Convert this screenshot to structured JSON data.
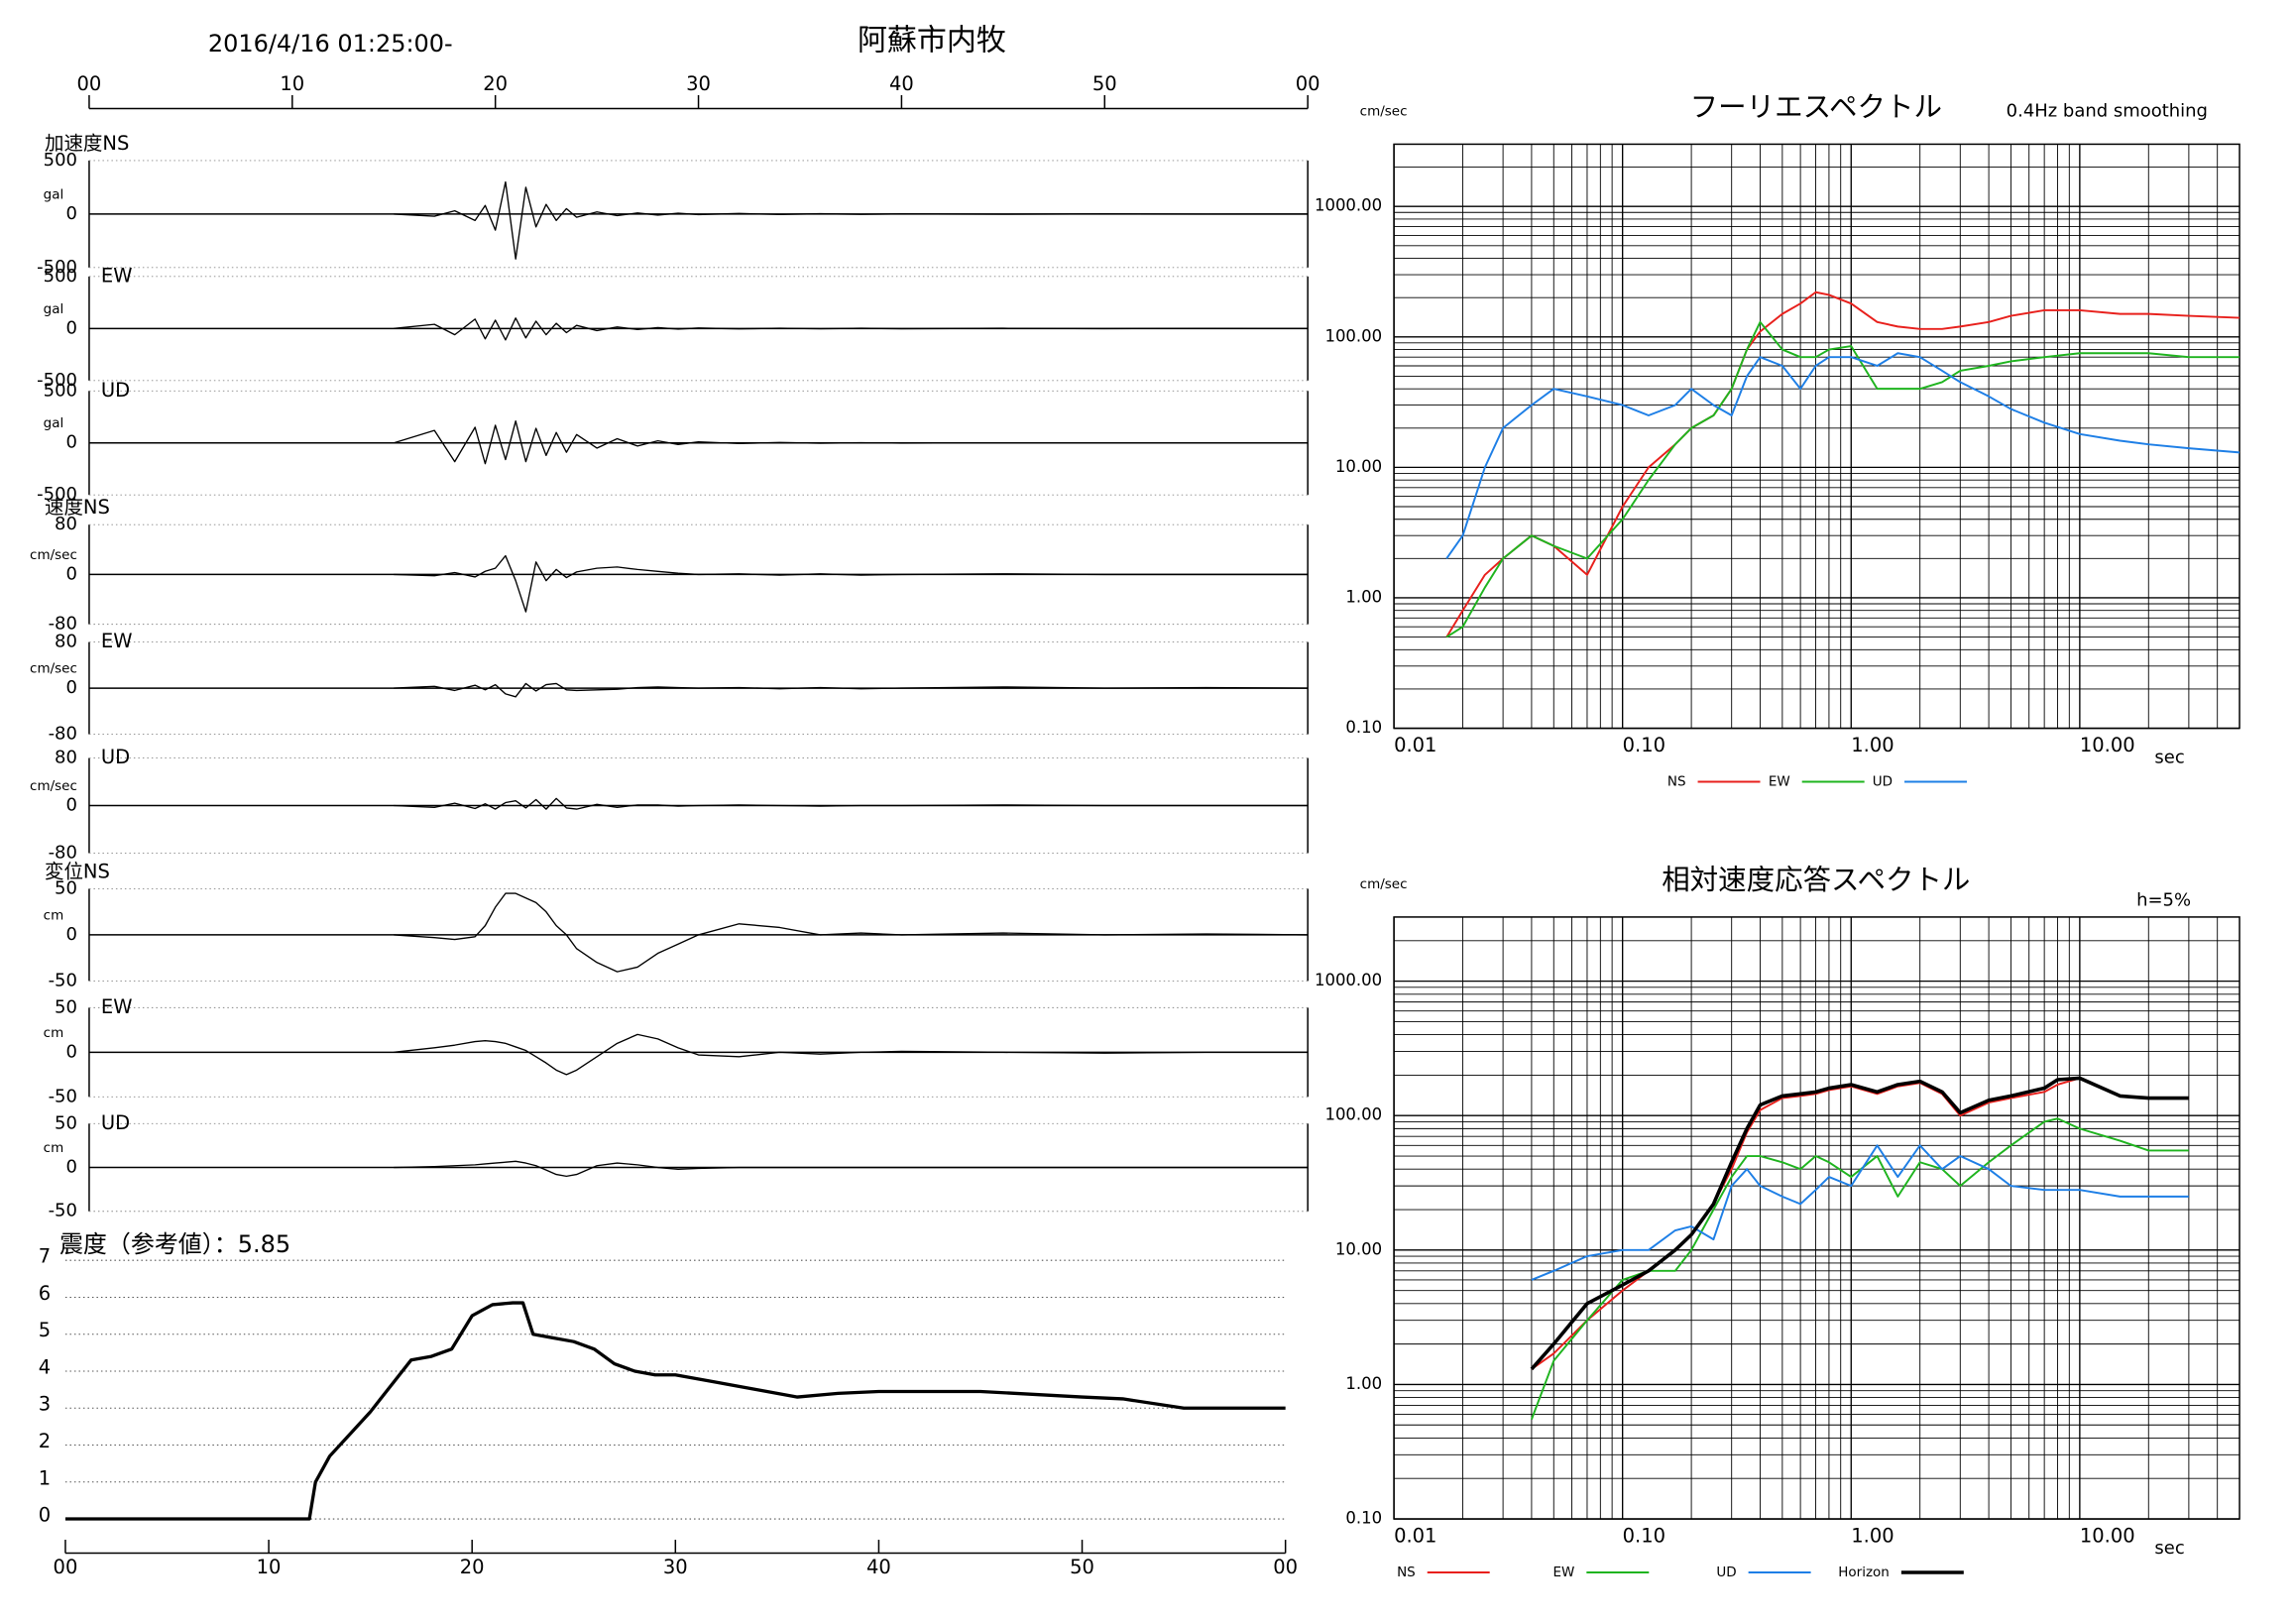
{
  "header": {
    "datetime": "2016/4/16 01:25:00-",
    "title": "阿蘇市内牧"
  },
  "chart_data": [
    {
      "type": "line",
      "label": "加速度NS",
      "unit": "gal",
      "color": "#000000",
      "xlim": [
        0,
        60
      ],
      "xticks": [
        {
          "value": 0,
          "label": "00"
        },
        10,
        20,
        30,
        40,
        50,
        {
          "value": 60,
          "label": "00"
        }
      ],
      "ylim": [
        -500,
        500
      ],
      "yticks": [
        -500,
        0,
        500
      ],
      "x": [
        15,
        17,
        18,
        19,
        19.5,
        20,
        20.5,
        21,
        21.5,
        22,
        22.5,
        23,
        23.5,
        24,
        25,
        26,
        27,
        28,
        29,
        30,
        32,
        34,
        36,
        38,
        40,
        45,
        50,
        55,
        60
      ],
      "values": [
        0,
        -20,
        30,
        -60,
        80,
        -150,
        300,
        -420,
        250,
        -120,
        90,
        -60,
        50,
        -30,
        20,
        -15,
        10,
        -10,
        8,
        -5,
        5,
        -4,
        3,
        -3,
        2,
        -2,
        2,
        -1,
        0
      ]
    },
    {
      "type": "line",
      "label": "EW",
      "unit": "gal",
      "color": "#000000",
      "xlim": [
        0,
        60
      ],
      "ylim": [
        -500,
        500
      ],
      "yticks": [
        -500,
        0,
        500
      ],
      "x": [
        15,
        17,
        18,
        19,
        19.5,
        20,
        20.5,
        21,
        21.5,
        22,
        22.5,
        23,
        23.5,
        24,
        25,
        26,
        27,
        28,
        29,
        30,
        32,
        34,
        36,
        38,
        40,
        45,
        50,
        55,
        60
      ],
      "values": [
        0,
        40,
        -60,
        90,
        -100,
        80,
        -110,
        100,
        -90,
        70,
        -60,
        50,
        -40,
        30,
        -20,
        15,
        -10,
        8,
        -6,
        5,
        -4,
        3,
        -3,
        2,
        -2,
        2,
        -1,
        1,
        0
      ]
    },
    {
      "type": "line",
      "label": "UD",
      "unit": "gal",
      "color": "#000000",
      "xlim": [
        0,
        60
      ],
      "ylim": [
        -500,
        500
      ],
      "yticks": [
        -500,
        0,
        500
      ],
      "x": [
        15,
        17,
        18,
        19,
        19.5,
        20,
        20.5,
        21,
        21.5,
        22,
        22.5,
        23,
        23.5,
        24,
        25,
        26,
        27,
        28,
        29,
        30,
        32,
        34,
        36,
        38,
        40,
        45,
        50,
        55,
        60
      ],
      "values": [
        0,
        120,
        -180,
        150,
        -200,
        170,
        -160,
        210,
        -180,
        140,
        -120,
        100,
        -90,
        80,
        -50,
        40,
        -30,
        20,
        -15,
        10,
        -6,
        4,
        -3,
        2,
        -2,
        1,
        -1,
        1,
        0
      ]
    },
    {
      "type": "line",
      "label": "速度NS",
      "unit": "cm/sec",
      "color": "#000000",
      "xlim": [
        0,
        60
      ],
      "ylim": [
        -80,
        80
      ],
      "yticks": [
        -80,
        0,
        80
      ],
      "x": [
        15,
        17,
        18,
        19,
        19.5,
        20,
        20.5,
        21,
        21.5,
        22,
        22.5,
        23,
        23.5,
        24,
        25,
        26,
        27,
        28,
        29,
        30,
        32,
        34,
        36,
        38,
        40,
        45,
        50,
        55,
        60
      ],
      "values": [
        0,
        -2,
        3,
        -4,
        5,
        10,
        30,
        -10,
        -60,
        20,
        -10,
        8,
        -5,
        4,
        10,
        12,
        8,
        5,
        2,
        0,
        1,
        -1,
        1,
        -1,
        0,
        1,
        0,
        0,
        0
      ]
    },
    {
      "type": "line",
      "label": "EW",
      "unit": "cm/sec",
      "color": "#000000",
      "xlim": [
        0,
        60
      ],
      "ylim": [
        -80,
        80
      ],
      "yticks": [
        -80,
        0,
        80
      ],
      "x": [
        15,
        17,
        18,
        19,
        19.5,
        20,
        20.5,
        21,
        21.5,
        22,
        22.5,
        23,
        23.5,
        24,
        25,
        26,
        27,
        28,
        29,
        30,
        32,
        34,
        36,
        38,
        40,
        45,
        50,
        55,
        60
      ],
      "values": [
        0,
        3,
        -4,
        5,
        -3,
        6,
        -10,
        -15,
        8,
        -5,
        6,
        8,
        -3,
        -4,
        -3,
        -2,
        1,
        2,
        1,
        0,
        1,
        -1,
        1,
        -1,
        0,
        2,
        0,
        1,
        0
      ]
    },
    {
      "type": "line",
      "label": "UD",
      "unit": "cm/sec",
      "color": "#000000",
      "xlim": [
        0,
        60
      ],
      "ylim": [
        -80,
        80
      ],
      "yticks": [
        -80,
        0,
        80
      ],
      "x": [
        15,
        17,
        18,
        19,
        19.5,
        20,
        20.5,
        21,
        21.5,
        22,
        22.5,
        23,
        23.5,
        24,
        25,
        26,
        27,
        28,
        29,
        30,
        32,
        34,
        36,
        38,
        40,
        45,
        50,
        55,
        60
      ],
      "values": [
        0,
        -3,
        4,
        -5,
        3,
        -6,
        5,
        8,
        -4,
        10,
        -6,
        12,
        -4,
        -6,
        2,
        -3,
        1,
        1,
        -1,
        0,
        1,
        0,
        -1,
        0,
        0,
        1,
        0,
        0,
        0
      ]
    },
    {
      "type": "line",
      "label": "変位NS",
      "unit": "cm",
      "color": "#000000",
      "xlim": [
        0,
        60
      ],
      "ylim": [
        -50,
        50
      ],
      "yticks": [
        -50,
        0,
        50
      ],
      "x": [
        15,
        17,
        18,
        19,
        19.5,
        20,
        20.5,
        21,
        21.5,
        22,
        22.5,
        23,
        23.5,
        24,
        25,
        26,
        27,
        28,
        29,
        30,
        32,
        34,
        36,
        38,
        40,
        45,
        50,
        55,
        60
      ],
      "values": [
        0,
        -3,
        -5,
        -2,
        10,
        30,
        45,
        45,
        40,
        35,
        25,
        10,
        0,
        -15,
        -30,
        -40,
        -35,
        -20,
        -10,
        0,
        12,
        8,
        0,
        2,
        0,
        2,
        0,
        1,
        0
      ]
    },
    {
      "type": "line",
      "label": "EW",
      "unit": "cm",
      "color": "#000000",
      "xlim": [
        0,
        60
      ],
      "ylim": [
        -50,
        50
      ],
      "yticks": [
        -50,
        0,
        50
      ],
      "x": [
        15,
        17,
        18,
        19,
        19.5,
        20,
        20.5,
        21,
        21.5,
        22,
        22.5,
        23,
        23.5,
        24,
        25,
        26,
        27,
        28,
        29,
        30,
        32,
        34,
        36,
        38,
        40,
        45,
        50,
        55,
        60
      ],
      "values": [
        0,
        5,
        8,
        12,
        13,
        12,
        10,
        6,
        2,
        -5,
        -12,
        -20,
        -25,
        -20,
        -5,
        10,
        20,
        15,
        5,
        -3,
        -5,
        0,
        -2,
        0,
        1,
        0,
        -1,
        0,
        0
      ]
    },
    {
      "type": "line",
      "label": "UD",
      "unit": "cm",
      "color": "#000000",
      "xlim": [
        0,
        60
      ],
      "ylim": [
        -50,
        50
      ],
      "yticks": [
        -50,
        0,
        50
      ],
      "x": [
        15,
        17,
        18,
        19,
        19.5,
        20,
        20.5,
        21,
        21.5,
        22,
        22.5,
        23,
        23.5,
        24,
        25,
        26,
        27,
        28,
        29,
        30,
        32,
        34,
        36,
        38,
        40,
        45,
        50,
        55,
        60
      ],
      "values": [
        0,
        1,
        2,
        3,
        4,
        5,
        6,
        7,
        5,
        2,
        -3,
        -8,
        -10,
        -8,
        2,
        5,
        3,
        0,
        -2,
        -1,
        0,
        0,
        0,
        0,
        0,
        0,
        0,
        0,
        0
      ]
    },
    {
      "type": "line",
      "title": "震度（参考値）：5.85",
      "color": "#000000",
      "grid": true,
      "xlim": [
        0,
        60
      ],
      "xticks": [
        {
          "value": 0,
          "label": "00"
        },
        10,
        20,
        30,
        40,
        50,
        {
          "value": 60,
          "label": "00"
        }
      ],
      "ylim": [
        0,
        7
      ],
      "yticks": [
        0,
        1,
        2,
        3,
        4,
        5,
        6,
        7
      ],
      "x": [
        0,
        12,
        12.3,
        13,
        14,
        15,
        16,
        17,
        18,
        19,
        20,
        21,
        22,
        22.5,
        23,
        24,
        25,
        26,
        27,
        28,
        29,
        30,
        32,
        34,
        36,
        38,
        40,
        45,
        50,
        52,
        55,
        60
      ],
      "values": [
        0,
        0,
        1,
        1.7,
        2.3,
        2.9,
        3.6,
        4.3,
        4.4,
        4.6,
        5.5,
        5.8,
        5.85,
        5.85,
        5.0,
        4.9,
        4.8,
        4.6,
        4.2,
        4.0,
        3.9,
        3.9,
        3.7,
        3.5,
        3.3,
        3.4,
        3.45,
        3.45,
        3.3,
        3.25,
        3.0,
        3.0
      ]
    },
    {
      "type": "line",
      "title": "フーリエスペクトル",
      "subtitle": "0.4Hz band smoothing",
      "ylabel": "cm/sec",
      "xlabel": "sec",
      "log_x": true,
      "log_y": true,
      "grid": true,
      "legend": "bottom",
      "xlim": [
        0.01,
        50
      ],
      "xticks": [
        {
          "value": 0.01,
          "label": "0.01"
        },
        {
          "value": 0.1,
          "label": "0.10"
        },
        {
          "value": 1,
          "label": "1.00"
        },
        {
          "value": 10,
          "label": "10.00"
        }
      ],
      "ylim": [
        0.1,
        3000
      ],
      "yticks": [
        {
          "value": 0.1,
          "label": "0.10"
        },
        {
          "value": 1,
          "label": "1.00"
        },
        {
          "value": 10,
          "label": "10.00"
        },
        {
          "value": 100,
          "label": "100.00"
        },
        {
          "value": 1000,
          "label": "1000.00"
        }
      ],
      "x": [
        0.017,
        0.02,
        0.025,
        0.03,
        0.04,
        0.05,
        0.07,
        0.1,
        0.13,
        0.17,
        0.2,
        0.25,
        0.3,
        0.35,
        0.4,
        0.5,
        0.6,
        0.7,
        0.8,
        1,
        1.3,
        1.6,
        2,
        2.5,
        3,
        4,
        5,
        7,
        10,
        15,
        20,
        30,
        50
      ],
      "series": [
        {
          "name": "NS",
          "color": "#e8201c",
          "values": [
            0.5,
            0.8,
            1.5,
            2,
            3,
            2.5,
            1.5,
            5,
            10,
            15,
            20,
            25,
            40,
            80,
            110,
            150,
            180,
            220,
            210,
            180,
            130,
            120,
            115,
            115,
            120,
            130,
            145,
            160,
            160,
            150,
            150,
            145,
            140
          ]
        },
        {
          "name": "EW",
          "color": "#1fb41f",
          "values": [
            0.5,
            0.6,
            1.2,
            2,
            3,
            2.5,
            2,
            4,
            8,
            15,
            20,
            25,
            40,
            80,
            130,
            80,
            70,
            70,
            80,
            85,
            40,
            40,
            40,
            45,
            55,
            60,
            65,
            70,
            75,
            75,
            75,
            70,
            70
          ]
        },
        {
          "name": "UD",
          "color": "#1e7fe6",
          "values": [
            2,
            3,
            10,
            20,
            30,
            40,
            35,
            30,
            25,
            30,
            40,
            30,
            25,
            50,
            70,
            60,
            40,
            60,
            70,
            70,
            60,
            75,
            70,
            55,
            45,
            35,
            28,
            22,
            18,
            16,
            15,
            14,
            13
          ]
        }
      ]
    },
    {
      "type": "line",
      "title": "相対速度応答スペクトル",
      "subtitle": "h=5%",
      "ylabel": "cm/sec",
      "xlabel": "sec",
      "log_x": true,
      "log_y": true,
      "grid": true,
      "legend": "bottom",
      "xlim": [
        0.01,
        50
      ],
      "xticks": [
        {
          "value": 0.01,
          "label": "0.01"
        },
        {
          "value": 0.1,
          "label": "0.10"
        },
        {
          "value": 1,
          "label": "1.00"
        },
        {
          "value": 10,
          "label": "10.00"
        }
      ],
      "ylim": [
        0.1,
        3000
      ],
      "yticks": [
        {
          "value": 0.1,
          "label": "0.10"
        },
        {
          "value": 1,
          "label": "1.00"
        },
        {
          "value": 10,
          "label": "10.00"
        },
        {
          "value": 100,
          "label": "100.00"
        },
        {
          "value": 1000,
          "label": "1000.00"
        }
      ],
      "x": [
        0.04,
        0.05,
        0.07,
        0.1,
        0.13,
        0.17,
        0.2,
        0.25,
        0.3,
        0.35,
        0.4,
        0.5,
        0.6,
        0.7,
        0.8,
        1,
        1.3,
        1.6,
        2,
        2.5,
        3,
        4,
        5,
        7,
        8,
        10,
        15,
        20,
        30
      ],
      "series": [
        {
          "name": "NS",
          "color": "#e8201c",
          "values": [
            1.3,
            1.7,
            3,
            5,
            7,
            10,
            13,
            22,
            40,
            75,
            110,
            135,
            140,
            145,
            155,
            165,
            145,
            165,
            175,
            145,
            100,
            125,
            135,
            150,
            170,
            190,
            140,
            135,
            135
          ]
        },
        {
          "name": "EW",
          "color": "#1fb41f",
          "values": [
            0.55,
            1.5,
            3,
            6,
            7,
            7,
            10,
            20,
            35,
            50,
            50,
            45,
            40,
            50,
            45,
            35,
            50,
            25,
            45,
            40,
            30,
            45,
            60,
            90,
            95,
            80,
            65,
            55,
            55
          ]
        },
        {
          "name": "UD",
          "color": "#1e7fe6",
          "values": [
            6,
            7,
            9,
            10,
            10,
            14,
            15,
            12,
            30,
            40,
            30,
            25,
            22,
            28,
            35,
            30,
            60,
            35,
            60,
            40,
            50,
            40,
            30,
            28,
            28,
            28,
            25,
            25,
            25
          ]
        },
        {
          "name": "Horizon",
          "color": "#000000",
          "values": [
            1.3,
            2,
            4,
            5.5,
            7,
            10,
            13,
            22,
            45,
            80,
            120,
            140,
            145,
            150,
            160,
            170,
            150,
            170,
            180,
            150,
            105,
            130,
            140,
            160,
            185,
            190,
            140,
            135,
            135
          ]
        }
      ]
    }
  ]
}
